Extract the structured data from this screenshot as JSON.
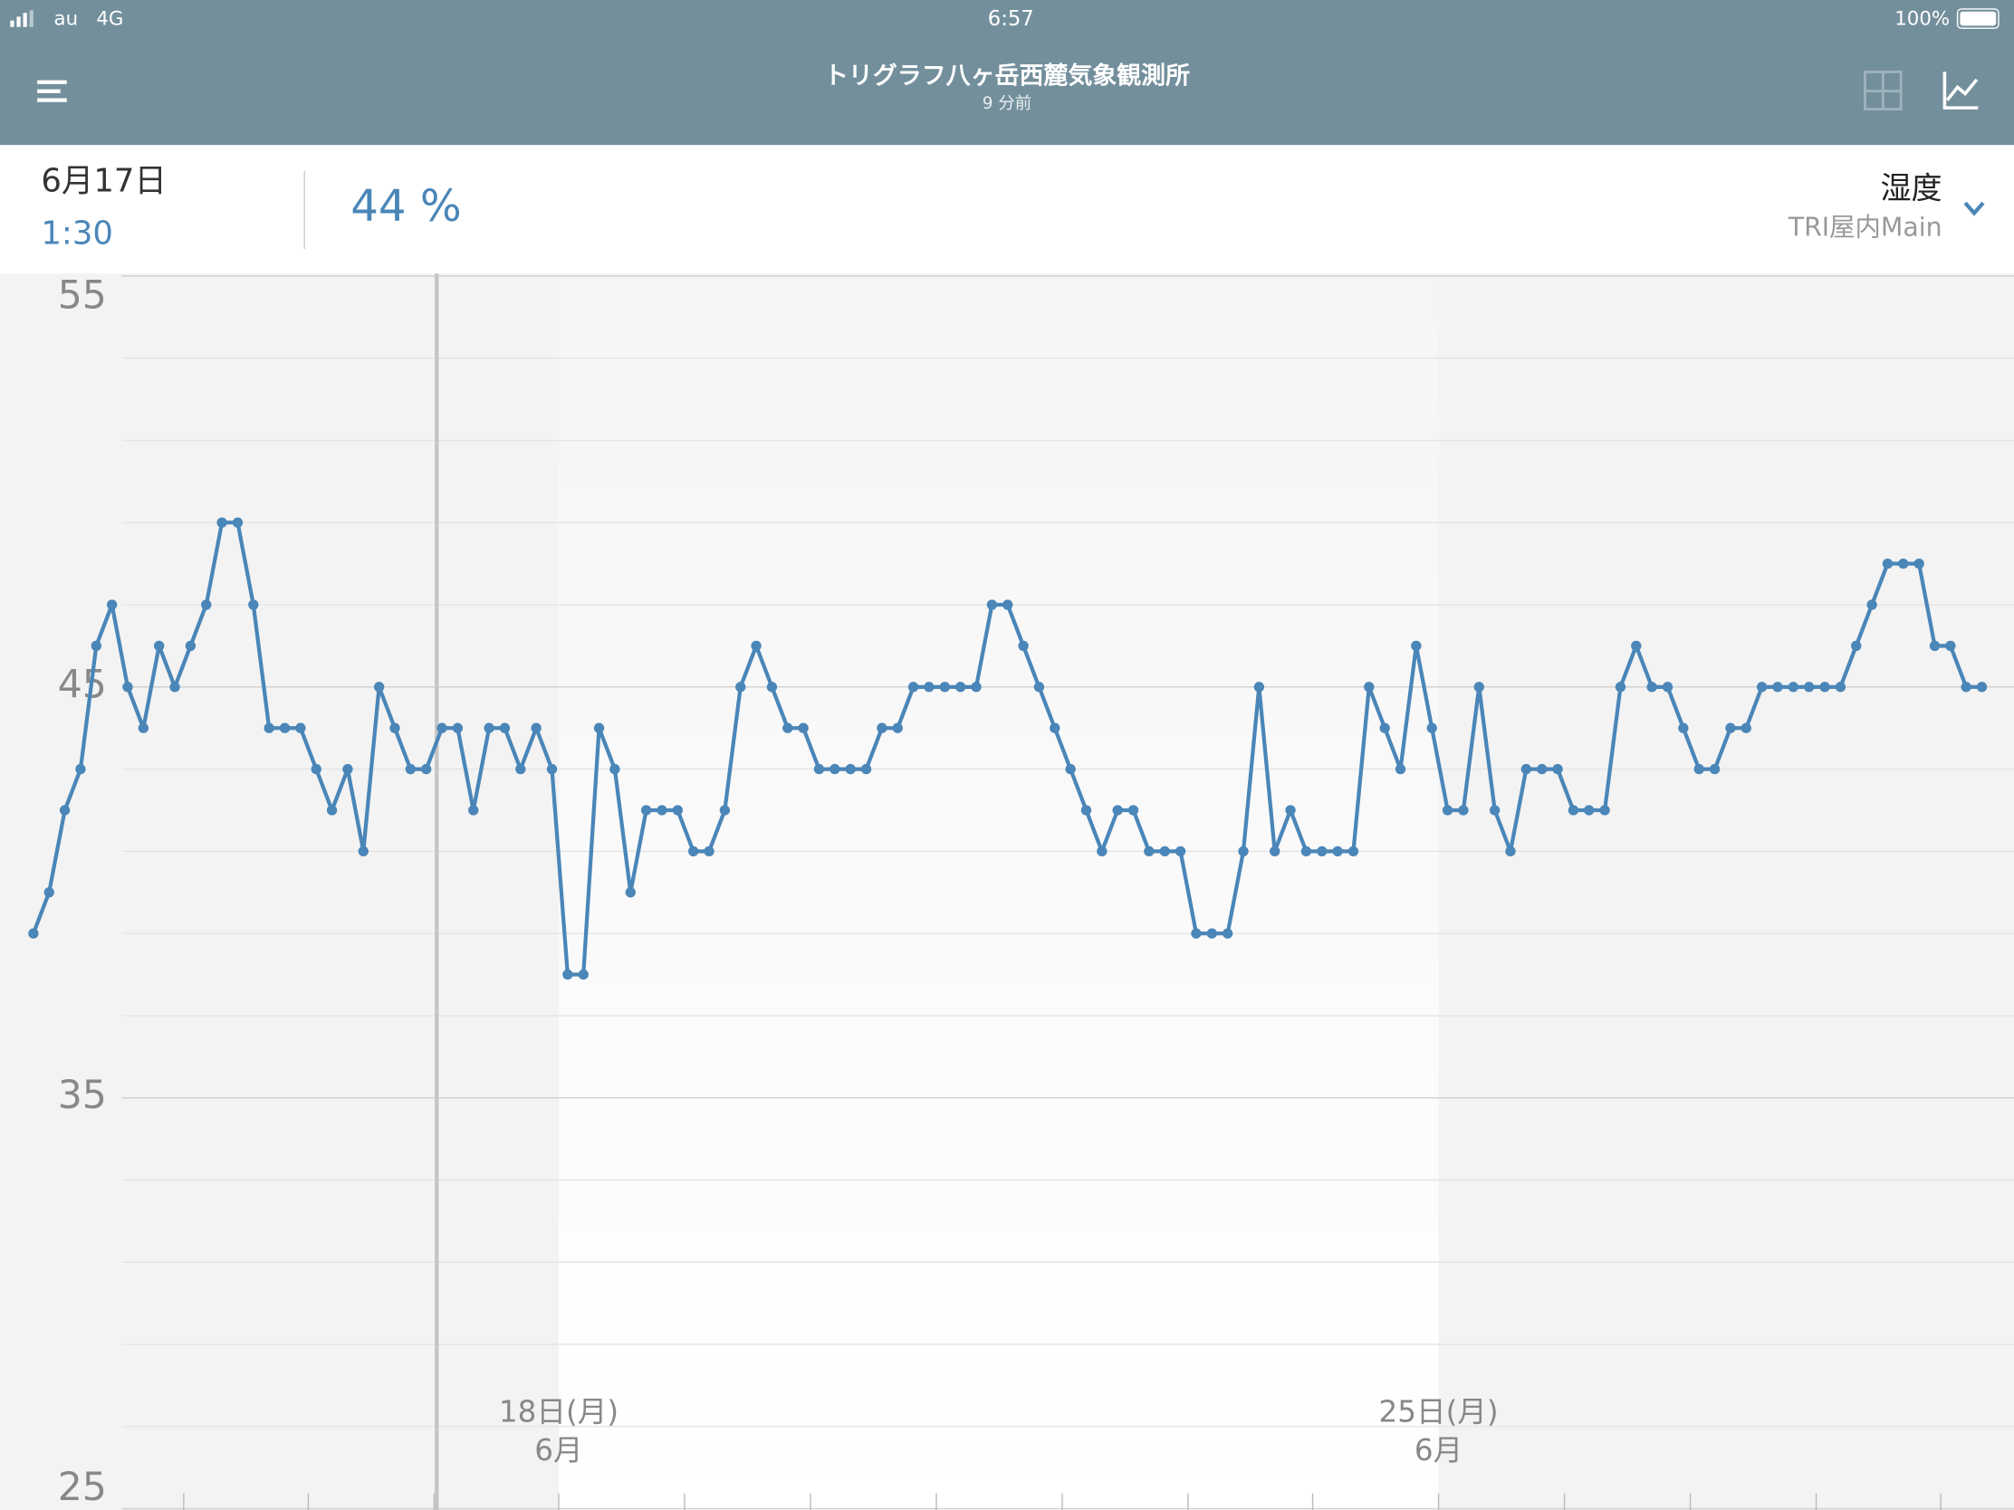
{
  "status": {
    "carrier": "au",
    "network": "4G",
    "time": "6:57",
    "battery": "100%"
  },
  "header": {
    "title": "トリグラフ八ヶ岳西麓気象観測所",
    "subtitle": "9 分前"
  },
  "info": {
    "date": "6月17日",
    "time": "1:30",
    "reading": "44 %",
    "metric": "湿度",
    "sensor": "TRI屋内Main"
  },
  "chart_data": {
    "type": "line",
    "color": "#4a86b8",
    "values": [
      39,
      40,
      42,
      43,
      46,
      47,
      45,
      44,
      46,
      45,
      46,
      47,
      49,
      49,
      47,
      44,
      44,
      44,
      43,
      42,
      43,
      41,
      45,
      44,
      43,
      43,
      44,
      44,
      42,
      44,
      44,
      43,
      44,
      43,
      38,
      38,
      44,
      43,
      40,
      42,
      42,
      42,
      41,
      41,
      42,
      45,
      46,
      45,
      44,
      44,
      43,
      43,
      43,
      43,
      44,
      44,
      45,
      45,
      45,
      45,
      45,
      47,
      47,
      46,
      45,
      44,
      43,
      42,
      41,
      42,
      42,
      41,
      41,
      41,
      39,
      39,
      39,
      41,
      45,
      41,
      42,
      41,
      41,
      41,
      41,
      45,
      44,
      43,
      46,
      44,
      42,
      42,
      45,
      42,
      41,
      43,
      43,
      43,
      42,
      42,
      42,
      45,
      46,
      45,
      45,
      44,
      43,
      43,
      44,
      44,
      45,
      45,
      45,
      45,
      45,
      45,
      46,
      47,
      48,
      48,
      48,
      46,
      46,
      45,
      45
    ],
    "ylim": [
      25,
      55
    ],
    "yticks": [
      25,
      35,
      45,
      55
    ],
    "minor_yticks": [
      27,
      29,
      31,
      33,
      37,
      39,
      41,
      43,
      47,
      49,
      51,
      53
    ],
    "grid": true,
    "x_labels": [
      {
        "day": "18日(月)",
        "month": "6月"
      },
      {
        "day": "25日(月)",
        "month": "6月"
      }
    ]
  }
}
